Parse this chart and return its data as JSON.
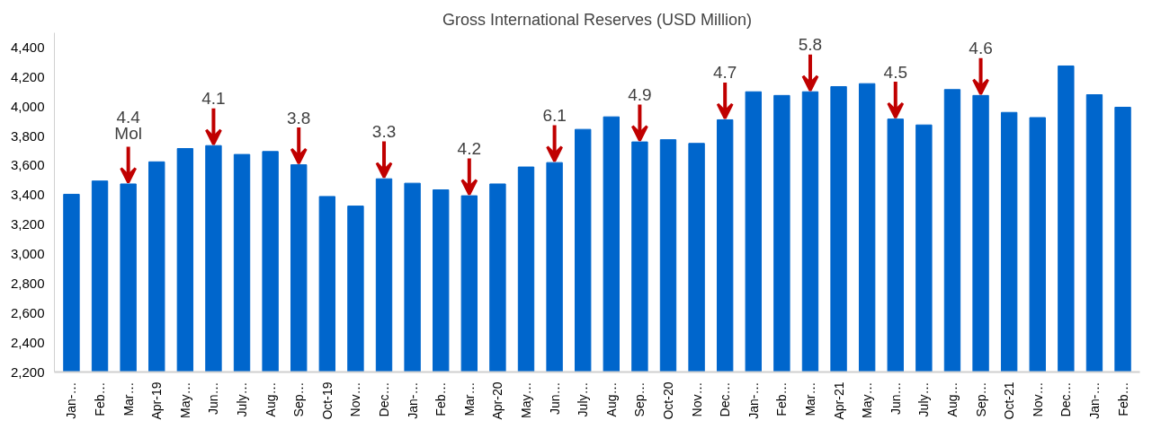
{
  "chart_data": {
    "type": "bar",
    "title": "Gross International Reserves (USD Million)",
    "categories": [
      "Jan-…",
      "Feb…",
      "Mar…",
      "Apr-19",
      "May…",
      "Jun…",
      "July…",
      "Aug…",
      "Sep…",
      "Oct-19",
      "Nov…",
      "Dec…",
      "Jan-…",
      "Feb…",
      "Mar…",
      "Apr-20",
      "May…",
      "Jun…",
      "July…",
      "Aug…",
      "Sep…",
      "Oct-20",
      "Nov…",
      "Dec…",
      "Jan-…",
      "Feb…",
      "Mar…",
      "Apr-21",
      "May…",
      "Jun…",
      "July…",
      "Aug…",
      "Sep…",
      "Oct-21",
      "Nov…",
      "Dec…",
      "Jan-…",
      "Feb…"
    ],
    "values": [
      3405,
      3495,
      3475,
      3625,
      3715,
      3735,
      3675,
      3695,
      3605,
      3390,
      3325,
      3510,
      3480,
      3435,
      3395,
      3475,
      3590,
      3620,
      3845,
      3930,
      3760,
      3775,
      3750,
      3910,
      4100,
      4075,
      4100,
      4135,
      4155,
      3915,
      3875,
      4115,
      4075,
      3960,
      3925,
      4275,
      4080,
      3995
    ],
    "color": "#0066cc",
    "ylim": [
      2200,
      4500
    ],
    "yticks": [
      {
        "value": 2200,
        "label": "2,200"
      },
      {
        "value": 2400,
        "label": "2,400"
      },
      {
        "value": 2600,
        "label": "2,600"
      },
      {
        "value": 2800,
        "label": "2,800"
      },
      {
        "value": 3000,
        "label": "3,000"
      },
      {
        "value": 3200,
        "label": "3,200"
      },
      {
        "value": 3400,
        "label": "3,400"
      },
      {
        "value": 3600,
        "label": "3,600"
      },
      {
        "value": 3800,
        "label": "3,800"
      },
      {
        "value": 4000,
        "label": "4,000"
      },
      {
        "value": 4200,
        "label": "4,200"
      },
      {
        "value": 4400,
        "label": "4,400"
      }
    ],
    "grid": false,
    "annotations": [
      {
        "text": "4.4\nMol",
        "x": "Mar…",
        "y": 3475
      },
      {
        "text": "4.1",
        "x": "Jun…",
        "y": 3735
      },
      {
        "text": "3.8",
        "x": "Sep…",
        "y": 3605
      },
      {
        "text": "3.3",
        "x": "Dec…",
        "y": 3510
      },
      {
        "text": "4.2",
        "y": 3395
      },
      {
        "text": "6.1",
        "y": 3620
      },
      {
        "text": "4.9",
        "y": 3760
      },
      {
        "text": "4.7",
        "y": 3910
      },
      {
        "text": "5.8",
        "y": 4100
      },
      {
        "text": "4.5",
        "y": 3915
      },
      {
        "text": "4.6",
        "y": 4075
      }
    ]
  }
}
